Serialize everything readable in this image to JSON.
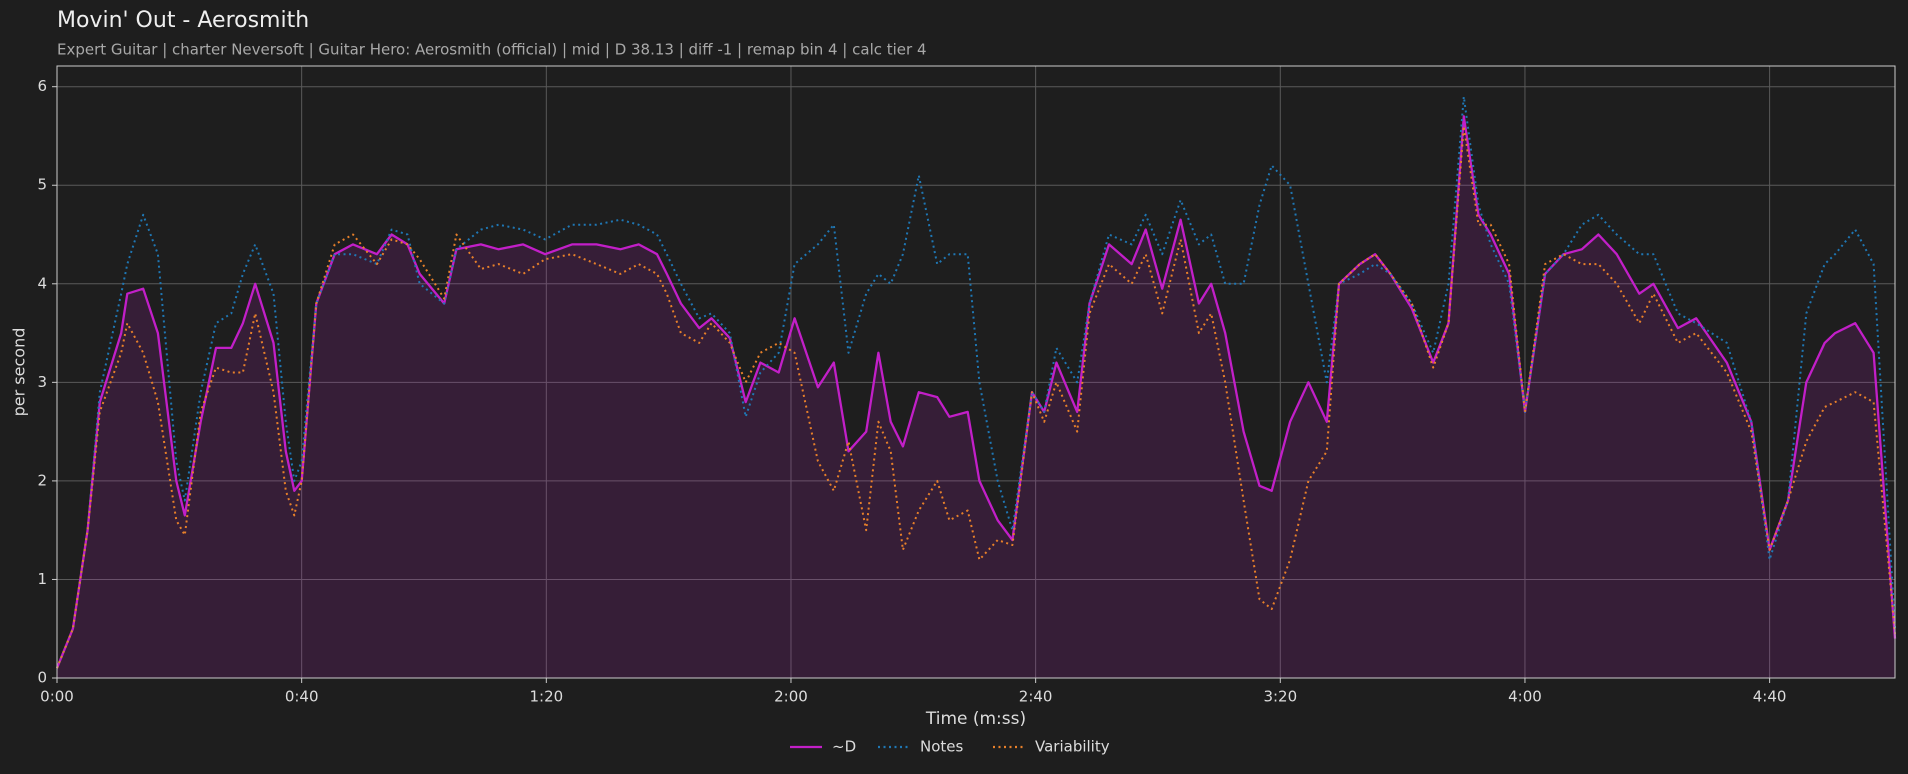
{
  "chart_data": {
    "type": "line",
    "title": "Movin' Out - Aerosmith",
    "subtitle": "Expert Guitar  |  charter Neversoft  |  Guitar Hero: Aerosmith (official)  |  mid  |  D 38.13  |  diff -1  |  remap bin 4  |  calc tier 4",
    "xlabel": "Time (m:ss)",
    "ylabel": "per second",
    "x": [
      0,
      2.6,
      5,
      7,
      10.5,
      11.5,
      14.1,
      16.5,
      19.5,
      20.9,
      23.5,
      26,
      28.5,
      30.4,
      32.4,
      35.4,
      37.4,
      38.8,
      40,
      42.4,
      45.4,
      48.4,
      52.3,
      54.7,
      57.3,
      59.3,
      63.3,
      65.3,
      69.3,
      72.2,
      76.2,
      79.8,
      84.2,
      88.2,
      92.1,
      95.1,
      98.1,
      99.7,
      102,
      105,
      107,
      110,
      112.6,
      115,
      118,
      120.6,
      124.4,
      127,
      129.4,
      132.3,
      134.3,
      136.3,
      138.3,
      140.9,
      143.9,
      145.9,
      148.9,
      150.8,
      153.8,
      156.2,
      159.4,
      161.4,
      163.4,
      166.8,
      168.8,
      172,
      175.7,
      178,
      180.7,
      183.7,
      186.7,
      188.7,
      191,
      194,
      196.6,
      198.6,
      201.6,
      204.6,
      207.6,
      209.6,
      213,
      215.5,
      218,
      221.5,
      225,
      227.5,
      230,
      232.4,
      234.4,
      237.4,
      240,
      243.3,
      246.3,
      249.3,
      252,
      255,
      258.7,
      261,
      265,
      268,
      273,
      277,
      280,
      283,
      286,
      289,
      290.7,
      294,
      297,
      300.5
    ],
    "series": [
      {
        "name": "~D",
        "color": "#c21fc8",
        "linestyle": "solid",
        "fill": true,
        "values": [
          0.1,
          0.5,
          1.5,
          2.8,
          3.5,
          3.9,
          3.95,
          3.5,
          2.0,
          1.65,
          2.6,
          3.35,
          3.35,
          3.6,
          4.0,
          3.4,
          2.3,
          1.9,
          2.0,
          3.8,
          4.3,
          4.4,
          4.3,
          4.5,
          4.4,
          4.1,
          3.8,
          4.35,
          4.4,
          4.35,
          4.4,
          4.3,
          4.4,
          4.4,
          4.35,
          4.4,
          4.3,
          4.1,
          3.8,
          3.55,
          3.65,
          3.45,
          2.8,
          3.2,
          3.1,
          3.65,
          2.95,
          3.2,
          2.3,
          2.5,
          3.3,
          2.6,
          2.35,
          2.9,
          2.85,
          2.65,
          2.7,
          2.0,
          1.6,
          1.4,
          2.9,
          2.7,
          3.2,
          2.7,
          3.8,
          4.4,
          4.2,
          4.55,
          3.95,
          4.65,
          3.8,
          4.0,
          3.5,
          2.5,
          1.95,
          1.9,
          2.6,
          3.0,
          2.6,
          4.0,
          4.2,
          4.3,
          4.1,
          3.75,
          3.2,
          3.6,
          5.7,
          4.7,
          4.5,
          4.1,
          2.7,
          4.1,
          4.3,
          4.35,
          4.5,
          4.3,
          3.9,
          4.0,
          3.55,
          3.65,
          3.2,
          2.6,
          1.3,
          1.8,
          3.0,
          3.4,
          3.5,
          3.6,
          3.3,
          0.4
        ]
      },
      {
        "name": "Notes",
        "color": "#1f77b4",
        "linestyle": "dotted",
        "fill": false,
        "values": [
          0.1,
          0.5,
          1.5,
          2.9,
          3.9,
          4.2,
          4.7,
          4.3,
          2.2,
          1.8,
          2.9,
          3.6,
          3.7,
          4.1,
          4.4,
          3.9,
          2.6,
          2.0,
          2.2,
          3.8,
          4.3,
          4.3,
          4.2,
          4.55,
          4.5,
          4.0,
          3.8,
          4.35,
          4.55,
          4.6,
          4.55,
          4.45,
          4.6,
          4.6,
          4.65,
          4.6,
          4.5,
          4.3,
          4.0,
          3.65,
          3.7,
          3.5,
          2.65,
          3.1,
          3.3,
          4.2,
          4.4,
          4.6,
          3.3,
          3.9,
          4.1,
          4.0,
          4.3,
          5.1,
          4.2,
          4.3,
          4.3,
          3.0,
          2.0,
          1.5,
          2.9,
          2.7,
          3.35,
          3.0,
          3.8,
          4.5,
          4.4,
          4.7,
          4.3,
          4.85,
          4.4,
          4.5,
          4.0,
          4.0,
          4.8,
          5.2,
          5.0,
          4.0,
          3.0,
          4.0,
          4.1,
          4.2,
          4.1,
          3.8,
          3.3,
          4.0,
          5.9,
          4.8,
          4.4,
          4.0,
          2.7,
          4.1,
          4.3,
          4.6,
          4.7,
          4.5,
          4.3,
          4.3,
          3.7,
          3.6,
          3.4,
          2.6,
          1.2,
          1.8,
          3.7,
          4.2,
          4.3,
          4.55,
          4.2,
          0.5
        ]
      },
      {
        "name": "Variability",
        "color": "#e8802a",
        "linestyle": "dotted",
        "fill": false,
        "values": [
          0.1,
          0.5,
          1.5,
          2.7,
          3.3,
          3.6,
          3.3,
          2.8,
          1.6,
          1.45,
          2.7,
          3.15,
          3.1,
          3.1,
          3.7,
          2.9,
          1.9,
          1.65,
          2.0,
          3.8,
          4.4,
          4.5,
          4.2,
          4.45,
          4.4,
          4.25,
          3.85,
          4.5,
          4.15,
          4.2,
          4.1,
          4.25,
          4.3,
          4.2,
          4.1,
          4.2,
          4.1,
          3.9,
          3.5,
          3.4,
          3.6,
          3.4,
          3.0,
          3.3,
          3.4,
          3.3,
          2.2,
          1.9,
          2.4,
          1.5,
          2.6,
          2.3,
          1.3,
          1.7,
          2.0,
          1.6,
          1.7,
          1.2,
          1.4,
          1.35,
          2.9,
          2.6,
          3.0,
          2.5,
          3.7,
          4.2,
          4.0,
          4.3,
          3.7,
          4.45,
          3.5,
          3.7,
          3.0,
          1.8,
          0.8,
          0.7,
          1.2,
          2.0,
          2.3,
          4.0,
          4.2,
          4.3,
          4.1,
          3.8,
          3.15,
          3.6,
          5.6,
          4.6,
          4.6,
          4.2,
          2.7,
          4.2,
          4.3,
          4.2,
          4.2,
          4.0,
          3.6,
          3.9,
          3.4,
          3.5,
          3.1,
          2.5,
          1.3,
          1.8,
          2.4,
          2.75,
          2.8,
          2.9,
          2.8,
          0.45
        ]
      }
    ],
    "xlim": [
      0,
      300.5
    ],
    "ylim": [
      0,
      6.21
    ],
    "xticks": [
      {
        "value": 0,
        "label": "0:00"
      },
      {
        "value": 40,
        "label": "0:40"
      },
      {
        "value": 80,
        "label": "1:20"
      },
      {
        "value": 120,
        "label": "2:00"
      },
      {
        "value": 160,
        "label": "2:40"
      },
      {
        "value": 200,
        "label": "3:20"
      },
      {
        "value": 240,
        "label": "4:00"
      },
      {
        "value": 280,
        "label": "4:40"
      }
    ],
    "yticks": [
      0,
      1,
      2,
      3,
      4,
      5,
      6
    ],
    "grid": true,
    "legend": "lower center"
  }
}
